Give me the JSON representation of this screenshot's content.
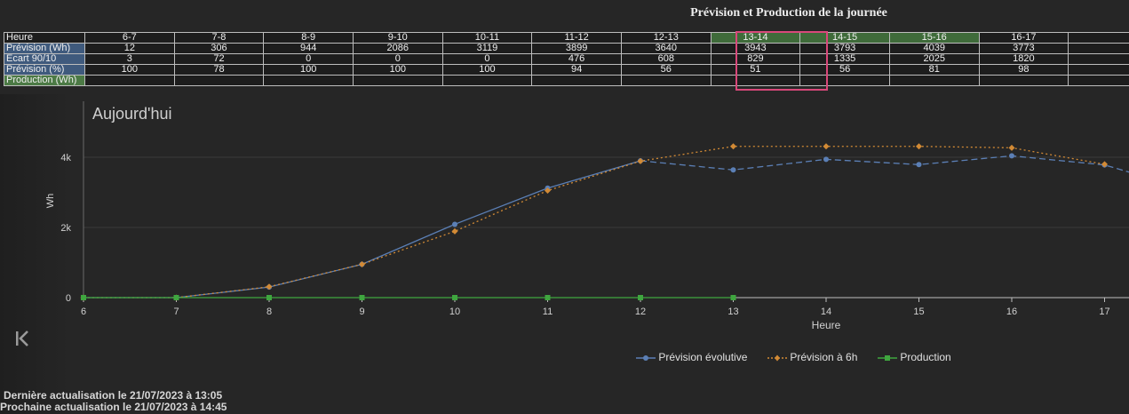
{
  "header": {
    "title": "Prévision et Production de la journée"
  },
  "table": {
    "labels": [
      "Heure",
      "Prévision (Wh)",
      "Ecart 90/10",
      "Prévision (%)",
      "Production (Wh)"
    ],
    "hours": [
      "6-7",
      "7-8",
      "8-9",
      "9-10",
      "10-11",
      "11-12",
      "12-13",
      "13-14",
      "14-15",
      "15-16",
      "16-17",
      ""
    ],
    "prevision": [
      "12",
      "306",
      "944",
      "2086",
      "3119",
      "3899",
      "3640",
      "3943",
      "3793",
      "4039",
      "3773",
      ""
    ],
    "ecart": [
      "3",
      "72",
      "0",
      "0",
      "0",
      "476",
      "608",
      "829",
      "1335",
      "2025",
      "1820",
      ""
    ],
    "pct": [
      "100",
      "78",
      "100",
      "100",
      "100",
      "94",
      "56",
      "51",
      "56",
      "81",
      "98",
      ""
    ],
    "production": [
      "",
      "",
      "",
      "",
      "",
      "",
      "",
      "",
      "",
      "",
      "",
      ""
    ],
    "highlighted_hours": [
      "13-14",
      "14-15",
      "15-16"
    ],
    "current_hour": "13-14",
    "colors": {
      "label_blue": "#3f5a7d",
      "label_green": "#4c7a45",
      "highlight_green": "#3f6b3a",
      "current_box": "#d8487a"
    }
  },
  "chart_title": "Aujourd'hui",
  "chart_data": {
    "type": "line",
    "title": "Aujourd'hui",
    "xlabel": "Heure",
    "ylabel": "Wh",
    "x_ticks": [
      6,
      7,
      8,
      9,
      10,
      11,
      12,
      13,
      14,
      15,
      16,
      17
    ],
    "y_ticks": [
      0,
      2000,
      4000
    ],
    "y_tick_labels": [
      "0",
      "2k",
      "4k"
    ],
    "xlim": [
      6,
      17.3
    ],
    "ylim": [
      0,
      5300
    ],
    "grid": "horizontal",
    "series": [
      {
        "name": "Prévision évolutive",
        "color": "#5b7fb5",
        "marker": "circle",
        "style": "solid-then-dashed",
        "dashed_from_x": 12,
        "points": [
          [
            6,
            0
          ],
          [
            7,
            0
          ],
          [
            8,
            300
          ],
          [
            9,
            950
          ],
          [
            10,
            2090
          ],
          [
            11,
            3120
          ],
          [
            12,
            3900
          ],
          [
            13,
            3640
          ],
          [
            14,
            3940
          ],
          [
            15,
            3790
          ],
          [
            16,
            4040
          ],
          [
            17,
            3780
          ],
          [
            17.3,
            3550
          ]
        ]
      },
      {
        "name": "Prévision à 6h",
        "color": "#d28a35",
        "marker": "diamond",
        "style": "dotted",
        "points": [
          [
            6,
            0
          ],
          [
            7,
            0
          ],
          [
            8,
            310
          ],
          [
            9,
            950
          ],
          [
            10,
            1890
          ],
          [
            11,
            3050
          ],
          [
            12,
            3890
          ],
          [
            13,
            4310
          ],
          [
            14,
            4310
          ],
          [
            15,
            4310
          ],
          [
            16,
            4270
          ],
          [
            17,
            3800
          ]
        ]
      },
      {
        "name": "Production",
        "color": "#3fa63f",
        "marker": "square",
        "style": "solid",
        "points": [
          [
            6,
            0
          ],
          [
            7,
            0
          ],
          [
            8,
            0
          ],
          [
            9,
            0
          ],
          [
            10,
            0
          ],
          [
            11,
            0
          ],
          [
            12,
            0
          ],
          [
            13,
            0
          ]
        ]
      }
    ],
    "legend_position": "bottom-center"
  },
  "legend": [
    {
      "label": "Prévision évolutive",
      "color": "#5b7fb5"
    },
    {
      "label": "Prévision à 6h",
      "color": "#d28a35"
    },
    {
      "label": "Production",
      "color": "#3fa63f"
    }
  ],
  "footer": {
    "last_update": "Dernière actualisation le 21/07/2023 à 13:05",
    "next_update": "Prochaine actualisation le 21/07/2023 à 14:45"
  },
  "icons": {
    "collapse": "collapse-left-icon"
  }
}
